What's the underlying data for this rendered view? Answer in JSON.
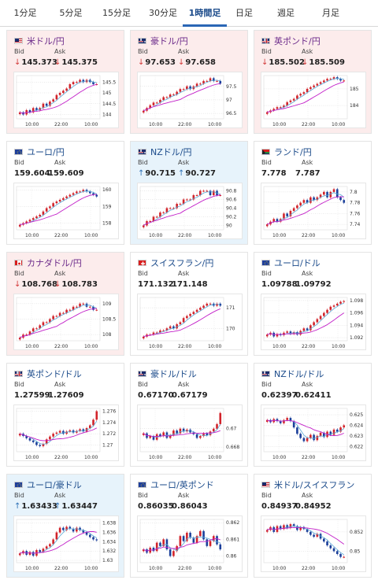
{
  "tabs": [
    "1分足",
    "5分足",
    "15分足",
    "30分足",
    "1時間足",
    "日足",
    "週足",
    "月足"
  ],
  "active_tab": "1時間足",
  "labels": {
    "bid": "Bid",
    "ask": "Ask"
  },
  "colors": {
    "down_bg": "#fcecec",
    "up_bg": "#e7f3fb",
    "candle_up": "#d2232a",
    "candle_down": "#1b3f9a",
    "ma_line": "#c21ec8",
    "ma_line2": "#5aa9d6"
  },
  "cards": [
    {
      "name": "米ドル/円",
      "flag": "us-jp",
      "trend": "down",
      "bid": "145.373",
      "ask": "145.375",
      "bid_dir": "down",
      "ask_dir": "down",
      "chart_data": {
        "type": "candlestick",
        "x_labels": [
          "10:00",
          "22:00",
          "10:00"
        ],
        "y_ticks": [
          "145.5",
          "145",
          "144.5",
          "144"
        ],
        "ylim": [
          143.8,
          145.8
        ],
        "closes": [
          144.1,
          144.0,
          144.2,
          144.1,
          144.3,
          144.2,
          144.3,
          144.5,
          144.4,
          144.6,
          144.7,
          144.9,
          145.0,
          145.1,
          145.2,
          145.4,
          145.5,
          145.5,
          145.6,
          145.5,
          145.6,
          145.5,
          145.4,
          145.4
        ]
      }
    },
    {
      "name": "豪ドル/円",
      "flag": "au-jp",
      "trend": "down",
      "bid": "97.653",
      "ask": "97.658",
      "bid_dir": "down",
      "ask_dir": "down",
      "chart_data": {
        "type": "candlestick",
        "x_labels": [
          "10:00",
          "22:00",
          "10:00"
        ],
        "y_ticks": [
          "97.5",
          "97",
          "96.5"
        ],
        "ylim": [
          96.3,
          97.9
        ],
        "closes": [
          96.6,
          96.7,
          96.8,
          96.9,
          96.9,
          97.0,
          97.1,
          97.1,
          97.2,
          97.2,
          97.3,
          97.4,
          97.4,
          97.5,
          97.4,
          97.5,
          97.6,
          97.6,
          97.7,
          97.7,
          97.8,
          97.7,
          97.7,
          97.6
        ]
      }
    },
    {
      "name": "英ポンド/円",
      "flag": "gb-jp",
      "trend": "down",
      "bid": "185.502",
      "ask": "185.509",
      "bid_dir": "down",
      "ask_dir": "down",
      "chart_data": {
        "type": "candlestick",
        "x_labels": [
          "10:00",
          "22:00",
          "10:00"
        ],
        "y_ticks": [
          "185",
          "184"
        ],
        "ylim": [
          183.2,
          185.8
        ],
        "closes": [
          183.6,
          183.7,
          183.8,
          183.9,
          183.9,
          184.0,
          184.2,
          184.3,
          184.4,
          184.6,
          184.7,
          184.8,
          185.0,
          185.1,
          185.2,
          185.3,
          185.4,
          185.5,
          185.6,
          185.6,
          185.7,
          185.6,
          185.5,
          185.5
        ]
      }
    },
    {
      "name": "ユーロ/円",
      "flag": "eu-jp",
      "trend": "neutral",
      "bid": "159.604",
      "ask": "159.609",
      "bid_dir": "",
      "ask_dir": "",
      "chart_data": {
        "type": "candlestick",
        "x_labels": [
          "10:00",
          "22:00",
          "10:00"
        ],
        "y_ticks": [
          "160",
          "159",
          "158"
        ],
        "ylim": [
          157.6,
          160.2
        ],
        "closes": [
          157.9,
          158.0,
          158.1,
          158.2,
          158.3,
          158.4,
          158.5,
          158.7,
          158.9,
          159.0,
          159.2,
          159.3,
          159.4,
          159.5,
          159.6,
          159.7,
          159.8,
          159.9,
          159.9,
          160.0,
          159.9,
          159.8,
          159.7,
          159.6
        ]
      }
    },
    {
      "name": "NZドル/円",
      "flag": "nz-jp",
      "trend": "up",
      "bid": "90.715",
      "ask": "90.727",
      "bid_dir": "up",
      "ask_dir": "up",
      "chart_data": {
        "type": "candlestick",
        "x_labels": [
          "10:00",
          "22:00",
          "10:00"
        ],
        "y_ticks": [
          "90.8",
          "90.6",
          "90.4",
          "90.2",
          "90"
        ],
        "ylim": [
          89.9,
          90.9
        ],
        "closes": [
          90.0,
          90.1,
          90.1,
          90.2,
          90.2,
          90.3,
          90.3,
          90.4,
          90.4,
          90.4,
          90.5,
          90.5,
          90.6,
          90.6,
          90.6,
          90.7,
          90.7,
          90.8,
          90.8,
          90.8,
          90.7,
          90.8,
          90.7,
          90.7
        ]
      }
    },
    {
      "name": "ランド/円",
      "flag": "za-jp",
      "trend": "neutral",
      "bid": "7.778",
      "ask": "7.787",
      "bid_dir": "",
      "ask_dir": "",
      "chart_data": {
        "type": "candlestick",
        "x_labels": [
          "10:00",
          "22:00",
          "10:00"
        ],
        "y_ticks": [
          "7.8",
          "7.78",
          "7.76",
          "7.74"
        ],
        "ylim": [
          7.73,
          7.81
        ],
        "closes": [
          7.74,
          7.745,
          7.75,
          7.745,
          7.75,
          7.76,
          7.755,
          7.765,
          7.77,
          7.775,
          7.78,
          7.785,
          7.78,
          7.79,
          7.785,
          7.79,
          7.795,
          7.8,
          7.79,
          7.8,
          7.805,
          7.79,
          7.785,
          7.78
        ]
      }
    },
    {
      "name": "カナダドル/円",
      "flag": "ca-jp",
      "trend": "down",
      "bid": "108.768",
      "ask": "108.783",
      "bid_dir": "down",
      "ask_dir": "down",
      "chart_data": {
        "type": "candlestick",
        "x_labels": [
          "10:00",
          "22:00",
          "10:00"
        ],
        "y_ticks": [
          "109",
          "108.5",
          "108"
        ],
        "ylim": [
          107.8,
          109.2
        ],
        "closes": [
          107.9,
          108.0,
          108.0,
          108.1,
          108.2,
          108.2,
          108.3,
          108.4,
          108.4,
          108.5,
          108.6,
          108.6,
          108.7,
          108.7,
          108.8,
          108.8,
          108.9,
          108.9,
          109.0,
          109.0,
          108.9,
          108.9,
          108.8,
          108.8
        ]
      }
    },
    {
      "name": "スイスフラン/円",
      "flag": "ch-jp",
      "trend": "neutral",
      "bid": "171.132",
      "ask": "171.148",
      "bid_dir": "",
      "ask_dir": "",
      "chart_data": {
        "type": "candlestick",
        "x_labels": [
          "10:00",
          "22:00",
          "10:00"
        ],
        "y_ticks": [
          "171",
          "170"
        ],
        "ylim": [
          169.4,
          171.5
        ],
        "closes": [
          169.6,
          169.7,
          169.7,
          169.8,
          169.8,
          169.9,
          169.9,
          170.0,
          170.1,
          170.0,
          170.2,
          170.3,
          170.5,
          170.6,
          170.7,
          170.8,
          170.9,
          171.0,
          171.1,
          171.2,
          171.2,
          171.1,
          171.2,
          171.1
        ]
      }
    },
    {
      "name": "ユーロ/ドル",
      "flag": "eu-us",
      "trend": "neutral",
      "bid": "1.09788",
      "ask": "1.09792",
      "bid_dir": "",
      "ask_dir": "",
      "chart_data": {
        "type": "candlestick",
        "x_labels": [
          "10:00",
          "22:00",
          "10:00"
        ],
        "y_ticks": [
          "1.098",
          "1.096",
          "1.094",
          "1.092"
        ],
        "ylim": [
          1.0915,
          1.0985
        ],
        "closes": [
          1.0925,
          1.0928,
          1.0922,
          1.0926,
          1.0924,
          1.0928,
          1.093,
          1.0926,
          1.0929,
          1.0925,
          1.0931,
          1.0935,
          1.0932,
          1.094,
          1.0945,
          1.095,
          1.0955,
          1.096,
          1.0965,
          1.097,
          1.0972,
          1.0975,
          1.0978,
          1.0979
        ]
      }
    },
    {
      "name": "英ポンド/ドル",
      "flag": "gb-us",
      "trend": "neutral",
      "bid": "1.27599",
      "ask": "1.27609",
      "bid_dir": "",
      "ask_dir": "",
      "chart_data": {
        "type": "candlestick",
        "x_labels": [
          "10:00",
          "22:00",
          "10:00"
        ],
        "y_ticks": [
          "1.276",
          "1.274",
          "1.272",
          "1.27"
        ],
        "ylim": [
          1.2688,
          1.2765
        ],
        "closes": [
          1.272,
          1.2716,
          1.2712,
          1.2708,
          1.2705,
          1.27,
          1.2698,
          1.2702,
          1.271,
          1.2715,
          1.272,
          1.2722,
          1.2725,
          1.272,
          1.2724,
          1.2726,
          1.2722,
          1.2725,
          1.2728,
          1.2724,
          1.273,
          1.2735,
          1.2745,
          1.276
        ]
      }
    },
    {
      "name": "豪ドル/ドル",
      "flag": "au-us",
      "trend": "neutral",
      "bid": "0.67170",
      "ask": "0.67179",
      "bid_dir": "",
      "ask_dir": "",
      "chart_data": {
        "type": "candlestick",
        "x_labels": [
          "10:00",
          "22:00",
          "10:00"
        ],
        "y_ticks": [
          "0.67",
          "0.668"
        ],
        "ylim": [
          0.6675,
          0.6722
        ],
        "closes": [
          0.6695,
          0.669,
          0.6692,
          0.6688,
          0.6694,
          0.6692,
          0.6696,
          0.669,
          0.6693,
          0.6698,
          0.6695,
          0.67,
          0.6697,
          0.6699,
          0.6696,
          0.6694,
          0.669,
          0.6692,
          0.6695,
          0.6693,
          0.6697,
          0.67,
          0.6705,
          0.6717
        ]
      }
    },
    {
      "name": "NZドル/ドル",
      "flag": "nz-us",
      "trend": "neutral",
      "bid": "0.62397",
      "ask": "0.62411",
      "bid_dir": "",
      "ask_dir": "",
      "chart_data": {
        "type": "candlestick",
        "x_labels": [
          "10:00",
          "22:00",
          "10:00"
        ],
        "y_ticks": [
          "0.625",
          "0.624",
          "0.623",
          "0.622"
        ],
        "ylim": [
          0.6215,
          0.6256
        ],
        "closes": [
          0.6245,
          0.6243,
          0.6246,
          0.6244,
          0.6242,
          0.6245,
          0.6247,
          0.6244,
          0.6238,
          0.6232,
          0.6228,
          0.6225,
          0.6228,
          0.6231,
          0.6226,
          0.623,
          0.6233,
          0.6229,
          0.6234,
          0.6231,
          0.6236,
          0.6234,
          0.6238,
          0.624
        ]
      }
    },
    {
      "name": "ユーロ/豪ドル",
      "flag": "eu-au",
      "trend": "up",
      "bid": "1.63433",
      "ask": "1.63447",
      "bid_dir": "up",
      "ask_dir": "up",
      "chart_data": {
        "type": "candlestick",
        "x_labels": [
          "10:00",
          "22:00",
          "10:00"
        ],
        "y_ticks": [
          "1.638",
          "1.636",
          "1.634",
          "1.632",
          "1.63"
        ],
        "ylim": [
          1.6295,
          1.6388
        ],
        "closes": [
          1.6315,
          1.632,
          1.6312,
          1.6318,
          1.631,
          1.6322,
          1.6318,
          1.6325,
          1.633,
          1.6335,
          1.6345,
          1.636,
          1.637,
          1.6365,
          1.6372,
          1.6368,
          1.6362,
          1.637,
          1.6365,
          1.636,
          1.6355,
          1.635,
          1.6345,
          1.6343
        ]
      }
    },
    {
      "name": "ユーロ/英ポンド",
      "flag": "eu-gb",
      "trend": "neutral",
      "bid": "0.86035",
      "ask": "0.86043",
      "bid_dir": "",
      "ask_dir": "",
      "chart_data": {
        "type": "candlestick",
        "x_labels": [
          "10:00",
          "22:00",
          "10:00"
        ],
        "y_ticks": [
          "0.862",
          "0.861",
          "0.86"
        ],
        "ylim": [
          0.8596,
          0.8622
        ],
        "closes": [
          0.8604,
          0.8602,
          0.8605,
          0.8603,
          0.8608,
          0.8606,
          0.861,
          0.8604,
          0.86,
          0.8603,
          0.8606,
          0.8612,
          0.8609,
          0.8614,
          0.8611,
          0.8608,
          0.8612,
          0.8615,
          0.861,
          0.8606,
          0.8609,
          0.8612,
          0.8607,
          0.8604
        ]
      }
    },
    {
      "name": "米ドル/スイスフラン",
      "flag": "us-ch",
      "trend": "neutral",
      "bid": "0.84937",
      "ask": "0.84952",
      "bid_dir": "",
      "ask_dir": "",
      "chart_data": {
        "type": "candlestick",
        "x_labels": [
          "10:00",
          "22:00",
          "10:00"
        ],
        "y_ticks": [
          "0.852",
          "0.85"
        ],
        "ylim": [
          0.8488,
          0.8533
        ],
        "closes": [
          0.8522,
          0.8525,
          0.852,
          0.8526,
          0.8523,
          0.8527,
          0.8524,
          0.8528,
          0.8526,
          0.8522,
          0.8525,
          0.8523,
          0.852,
          0.8517,
          0.8515,
          0.8518,
          0.8513,
          0.851,
          0.8506,
          0.8503,
          0.85,
          0.8497,
          0.8494,
          0.8494
        ]
      }
    }
  ]
}
